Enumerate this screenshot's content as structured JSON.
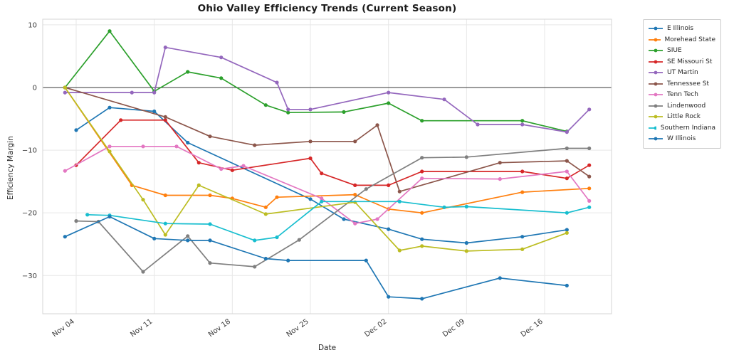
{
  "title": "Ohio Valley Efficiency Trends (Current Season)",
  "colors": {
    "background": "#ffffff",
    "grid": "#e7e7e7",
    "zero_line": "#4c4c4c",
    "spine": "#d6d6d6",
    "title_text": "#1a1a1a",
    "tick_text": "#3a3a3a",
    "legend_border": "#cccccc"
  },
  "chart_data": {
    "type": "line",
    "title": "Ohio Valley Efficiency Trends (Current Season)",
    "xlabel": "Date",
    "ylabel": "Efficiency Margin",
    "grid": true,
    "markers": true,
    "legend_position": "outside-right",
    "x_axis": {
      "unit": "days",
      "day_zero_date": "Nov 04",
      "xlim": [
        -3,
        48
      ],
      "ticks": [
        {
          "day": 0,
          "label": "Nov 04"
        },
        {
          "day": 7,
          "label": "Nov 11"
        },
        {
          "day": 14,
          "label": "Nov 18"
        },
        {
          "day": 21,
          "label": "Nov 25"
        },
        {
          "day": 28,
          "label": "Dec 02"
        },
        {
          "day": 35,
          "label": "Dec 09"
        },
        {
          "day": 42,
          "label": "Dec 16"
        }
      ]
    },
    "y_axis": {
      "ylim": [
        -36.1,
        10.9
      ],
      "zero_line": true,
      "ticks": [
        {
          "v": 10,
          "label": "10"
        },
        {
          "v": 0,
          "label": "0"
        },
        {
          "v": -10,
          "label": "−10"
        },
        {
          "v": -20,
          "label": "−20"
        },
        {
          "v": -30,
          "label": "−30"
        }
      ]
    },
    "series": [
      {
        "name": "E Illinois",
        "color": "#1f77b4",
        "points": [
          [
            0,
            -6.8
          ],
          [
            3,
            -3.2
          ],
          [
            7,
            -3.8
          ],
          [
            10,
            -8.8
          ],
          [
            21,
            -17.8
          ],
          [
            24,
            -21.0
          ],
          [
            28,
            -22.6
          ],
          [
            31,
            -24.2
          ],
          [
            35,
            -24.8
          ],
          [
            40,
            -23.8
          ],
          [
            44,
            -22.7
          ]
        ]
      },
      {
        "name": "Morehead State",
        "color": "#ff7f0e",
        "points": [
          [
            -1,
            0.0
          ],
          [
            5,
            -15.6
          ],
          [
            8,
            -17.2
          ],
          [
            12,
            -17.2
          ],
          [
            14,
            -17.7
          ],
          [
            17,
            -19.1
          ],
          [
            18,
            -17.5
          ],
          [
            25,
            -17.1
          ],
          [
            28,
            -19.4
          ],
          [
            31,
            -20.0
          ],
          [
            40,
            -16.7
          ],
          [
            46,
            -16.1
          ]
        ]
      },
      {
        "name": "SIUE",
        "color": "#2ca02c",
        "points": [
          [
            -1,
            0.0
          ],
          [
            3,
            9.0
          ],
          [
            7,
            -0.6
          ],
          [
            10,
            2.5
          ],
          [
            13,
            1.5
          ],
          [
            17,
            -2.8
          ],
          [
            19,
            -4.0
          ],
          [
            24,
            -3.9
          ],
          [
            28,
            -2.5
          ],
          [
            31,
            -5.3
          ],
          [
            40,
            -5.3
          ],
          [
            44,
            -7.0
          ]
        ]
      },
      {
        "name": "SE Missouri St",
        "color": "#d62728",
        "points": [
          [
            0,
            -12.4
          ],
          [
            4,
            -5.2
          ],
          [
            8,
            -5.2
          ],
          [
            11,
            -12.0
          ],
          [
            14,
            -13.2
          ],
          [
            21,
            -11.3
          ],
          [
            22,
            -13.7
          ],
          [
            25,
            -15.6
          ],
          [
            28,
            -15.6
          ],
          [
            31,
            -13.4
          ],
          [
            40,
            -13.4
          ],
          [
            44,
            -14.5
          ],
          [
            46,
            -12.4
          ]
        ]
      },
      {
        "name": "UT Martin",
        "color": "#9467bd",
        "points": [
          [
            -1,
            -0.8
          ],
          [
            5,
            -0.8
          ],
          [
            7,
            -0.8
          ],
          [
            8,
            6.4
          ],
          [
            13,
            4.8
          ],
          [
            18,
            0.8
          ],
          [
            19,
            -3.5
          ],
          [
            21,
            -3.5
          ],
          [
            28,
            -0.8
          ],
          [
            33,
            -1.9
          ],
          [
            36,
            -5.9
          ],
          [
            40,
            -5.9
          ],
          [
            44,
            -7.1
          ],
          [
            46,
            -3.5
          ]
        ]
      },
      {
        "name": "Tennessee St",
        "color": "#8c564b",
        "points": [
          [
            -1,
            0.0
          ],
          [
            8,
            -4.7
          ],
          [
            12,
            -7.8
          ],
          [
            16,
            -9.2
          ],
          [
            21,
            -8.6
          ],
          [
            25,
            -8.6
          ],
          [
            27,
            -6.0
          ],
          [
            29,
            -16.6
          ],
          [
            38,
            -12.0
          ],
          [
            44,
            -11.7
          ],
          [
            46,
            -14.2
          ]
        ]
      },
      {
        "name": "Tenn Tech",
        "color": "#e377c2",
        "points": [
          [
            -1,
            -13.3
          ],
          [
            3,
            -9.4
          ],
          [
            6,
            -9.4
          ],
          [
            9,
            -9.4
          ],
          [
            13,
            -13.0
          ],
          [
            15,
            -12.5
          ],
          [
            22,
            -17.7
          ],
          [
            25,
            -21.7
          ],
          [
            27,
            -21.0
          ],
          [
            31,
            -14.5
          ],
          [
            38,
            -14.6
          ],
          [
            44,
            -13.4
          ],
          [
            46,
            -18.1
          ]
        ]
      },
      {
        "name": "Lindenwood",
        "color": "#7f7f7f",
        "points": [
          [
            0,
            -21.3
          ],
          [
            2,
            -21.4
          ],
          [
            6,
            -29.4
          ],
          [
            10,
            -23.7
          ],
          [
            12,
            -28.0
          ],
          [
            16,
            -28.6
          ],
          [
            20,
            -24.3
          ],
          [
            26,
            -16.2
          ],
          [
            31,
            -11.2
          ],
          [
            35,
            -11.1
          ],
          [
            44,
            -9.7
          ],
          [
            46,
            -9.7
          ]
        ]
      },
      {
        "name": "Little Rock",
        "color": "#bcbd22",
        "points": [
          [
            -1,
            0.0
          ],
          [
            3,
            -10.2
          ],
          [
            6,
            -17.9
          ],
          [
            8,
            -23.5
          ],
          [
            11,
            -15.6
          ],
          [
            17,
            -20.2
          ],
          [
            25,
            -18.3
          ],
          [
            29,
            -26.0
          ],
          [
            31,
            -25.3
          ],
          [
            35,
            -26.1
          ],
          [
            40,
            -25.8
          ],
          [
            44,
            -23.2
          ]
        ]
      },
      {
        "name": "Southern Indiana",
        "color": "#17becf",
        "points": [
          [
            1,
            -20.3
          ],
          [
            3,
            -20.4
          ],
          [
            8,
            -21.7
          ],
          [
            12,
            -21.8
          ],
          [
            16,
            -24.4
          ],
          [
            18,
            -23.9
          ],
          [
            22,
            -18.2
          ],
          [
            29,
            -18.2
          ],
          [
            33,
            -19.1
          ],
          [
            35,
            -19.0
          ],
          [
            44,
            -20.0
          ],
          [
            46,
            -19.1
          ]
        ]
      },
      {
        "name": "W Illinois",
        "color": "#1f77b4",
        "points": [
          [
            -1,
            -23.8
          ],
          [
            3,
            -20.6
          ],
          [
            7,
            -24.1
          ],
          [
            10,
            -24.4
          ],
          [
            12,
            -24.4
          ],
          [
            17,
            -27.3
          ],
          [
            19,
            -27.6
          ],
          [
            26,
            -27.6
          ],
          [
            28,
            -33.4
          ],
          [
            31,
            -33.7
          ],
          [
            38,
            -30.4
          ],
          [
            44,
            -31.6
          ]
        ]
      }
    ]
  }
}
